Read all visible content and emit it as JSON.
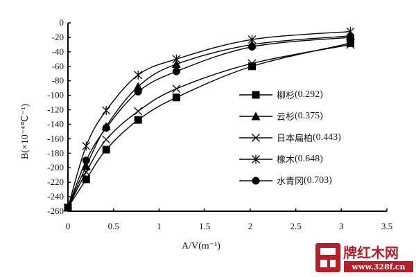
{
  "chart_data": {
    "type": "line",
    "title": "",
    "xlabel": "A/V(m⁻¹)",
    "ylabel": "B(×10⁻⁴℃⁻¹)",
    "xlim": [
      0,
      3.5
    ],
    "ylim": [
      -260,
      0
    ],
    "x_ticks": [
      "0",
      "0.5",
      "1",
      "1.5",
      "2",
      "2.5",
      "3",
      "3.5"
    ],
    "y_ticks": [
      "0",
      "-20",
      "-40",
      "-60",
      "-80",
      "-100",
      "-120",
      "-140",
      "-160",
      "-180",
      "-200",
      "-220",
      "-240",
      "-260"
    ],
    "grid": false,
    "legend_position": "right-center inside plot",
    "x": [
      0,
      0.2,
      0.42,
      0.77,
      1.19,
      2.02,
      3.1
    ],
    "series": [
      {
        "name": "柳杉",
        "value": "(0.292)",
        "marker": "square",
        "values": [
          -255,
          -216,
          -175,
          -134,
          -103,
          -60,
          -28
        ]
      },
      {
        "name": "云杉",
        "value": "(0.375)",
        "marker": "triangle",
        "values": [
          -255,
          -198,
          -143,
          -88,
          -57,
          -30,
          -18
        ]
      },
      {
        "name": "日本扁柏",
        "value": "(0.443)",
        "marker": "x",
        "values": [
          -255,
          -206,
          -161,
          -122,
          -91,
          -56,
          -30
        ]
      },
      {
        "name": "橡木",
        "value": "(0.648)",
        "marker": "asterisk",
        "values": [
          -255,
          -170,
          -121,
          -72,
          -50,
          -23,
          -12
        ]
      },
      {
        "name": "水青冈",
        "value": "(0.703)",
        "marker": "circle",
        "values": [
          -255,
          -190,
          -145,
          -95,
          -67,
          -33,
          -20
        ]
      }
    ]
  },
  "watermark": {
    "brand": "牌红木网",
    "url": "www.328f.cn",
    "color": "#b3202a"
  }
}
